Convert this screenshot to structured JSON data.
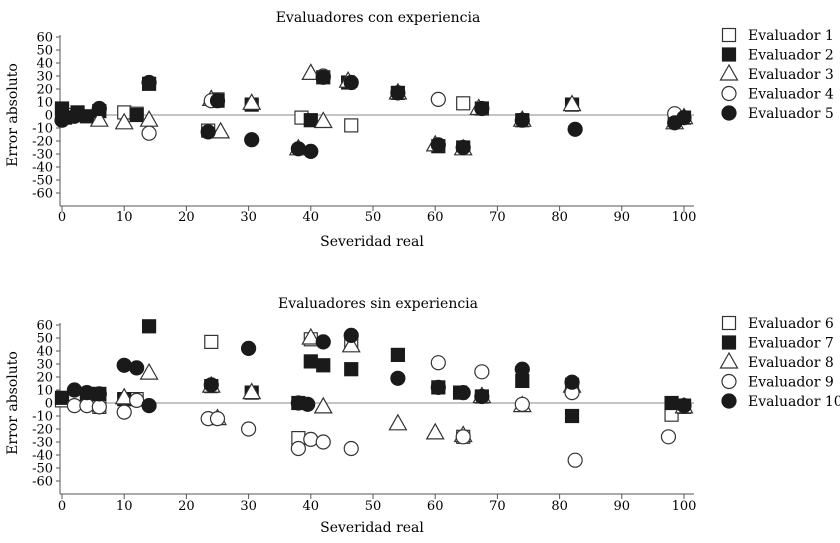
{
  "chart_data": [
    {
      "type": "scatter",
      "title": "Evaluadores con experiencia",
      "xlabel": "Severidad real",
      "ylabel": "Error absoluto",
      "xlim": [
        0,
        100
      ],
      "ylim": [
        -60,
        60
      ],
      "xticks": [
        0,
        10,
        20,
        30,
        40,
        50,
        60,
        70,
        80,
        90,
        100
      ],
      "yticks": [
        60,
        50,
        40,
        30,
        20,
        10,
        0,
        -10,
        -20,
        -30,
        -40,
        -50,
        -60
      ],
      "grid": false,
      "legend_position": "right",
      "series": [
        {
          "name": "Evaluador 1",
          "marker": "square-open",
          "points": [
            [
              0,
              3
            ],
            [
              2,
              0
            ],
            [
              10,
              2
            ],
            [
              12,
              1
            ],
            [
              23.5,
              -12
            ],
            [
              25,
              12
            ],
            [
              38.5,
              -2
            ],
            [
              46.5,
              -8
            ],
            [
              64.5,
              9
            ],
            [
              98.5,
              -2
            ]
          ]
        },
        {
          "name": "Evaluador 2",
          "marker": "square-filled",
          "points": [
            [
              0,
              5
            ],
            [
              0.5,
              -2
            ],
            [
              2.5,
              2
            ],
            [
              4,
              -1
            ],
            [
              6,
              3
            ],
            [
              12,
              0
            ],
            [
              14,
              24
            ],
            [
              25,
              11
            ],
            [
              30.5,
              8
            ],
            [
              40,
              -4
            ],
            [
              42,
              29
            ],
            [
              46,
              25
            ],
            [
              54,
              17
            ],
            [
              60.5,
              -24
            ],
            [
              64.5,
              -25
            ],
            [
              67.5,
              5
            ],
            [
              74,
              -4
            ],
            [
              82,
              8
            ],
            [
              100,
              -2
            ]
          ]
        },
        {
          "name": "Evaluador 3",
          "marker": "triangle-open",
          "points": [
            [
              6,
              -4
            ],
            [
              10,
              -6
            ],
            [
              14,
              -4
            ],
            [
              24,
              12
            ],
            [
              25.5,
              -13
            ],
            [
              30.5,
              9
            ],
            [
              38,
              -26
            ],
            [
              40,
              32
            ],
            [
              42,
              -5
            ],
            [
              46,
              26
            ],
            [
              54,
              17
            ],
            [
              60,
              -23
            ],
            [
              64.5,
              -26
            ],
            [
              67,
              5
            ],
            [
              74,
              -4
            ],
            [
              82,
              8
            ],
            [
              98.5,
              -6
            ],
            [
              100,
              -2
            ]
          ]
        },
        {
          "name": "Evaluador 4",
          "marker": "circle-open",
          "points": [
            [
              14,
              -14
            ],
            [
              24,
              11
            ],
            [
              42,
              30
            ],
            [
              60.5,
              12
            ],
            [
              98.5,
              1
            ]
          ]
        },
        {
          "name": "Evaluador 5",
          "marker": "circle-filled",
          "points": [
            [
              0,
              -4
            ],
            [
              2,
              -1
            ],
            [
              6,
              5
            ],
            [
              14,
              25
            ],
            [
              23.5,
              -13
            ],
            [
              25,
              11
            ],
            [
              30.5,
              -19
            ],
            [
              38,
              -26
            ],
            [
              40,
              -28
            ],
            [
              42,
              29
            ],
            [
              46.5,
              25
            ],
            [
              54,
              17
            ],
            [
              60.5,
              -23
            ],
            [
              64.5,
              -25
            ],
            [
              67.5,
              5
            ],
            [
              74,
              -4
            ],
            [
              82.5,
              -11
            ],
            [
              98.5,
              -6
            ],
            [
              100,
              -2
            ]
          ]
        }
      ]
    },
    {
      "type": "scatter",
      "title": "Evaluadores sin experiencia",
      "xlabel": "Severidad real",
      "ylabel": "Error absoluto",
      "xlim": [
        0,
        100
      ],
      "ylim": [
        -60,
        60
      ],
      "xticks": [
        0,
        10,
        20,
        30,
        40,
        50,
        60,
        70,
        80,
        90,
        100
      ],
      "yticks": [
        60,
        50,
        40,
        30,
        20,
        10,
        0,
        -10,
        -20,
        -30,
        -40,
        -50,
        -60
      ],
      "grid": false,
      "legend_position": "right",
      "series": [
        {
          "name": "Evaluador 6",
          "marker": "square-open",
          "points": [
            [
              0,
              2
            ],
            [
              6,
              -3
            ],
            [
              12,
              3
            ],
            [
              24,
              47
            ],
            [
              38,
              -27
            ],
            [
              40,
              49
            ],
            [
              46.5,
              46
            ],
            [
              64.5,
              -26
            ],
            [
              82,
              14
            ],
            [
              98,
              -9
            ],
            [
              100,
              -3
            ]
          ]
        },
        {
          "name": "Evaluador 7",
          "marker": "square-filled",
          "points": [
            [
              0,
              4
            ],
            [
              4,
              7
            ],
            [
              6,
              7
            ],
            [
              10,
              3
            ],
            [
              14,
              59
            ],
            [
              24,
              13
            ],
            [
              30.5,
              8
            ],
            [
              38,
              0
            ],
            [
              40,
              32
            ],
            [
              42,
              29
            ],
            [
              46.5,
              26
            ],
            [
              54,
              37
            ],
            [
              60.5,
              12
            ],
            [
              64,
              8
            ],
            [
              67.5,
              5
            ],
            [
              74,
              17
            ],
            [
              82,
              -10
            ],
            [
              98,
              0
            ],
            [
              100,
              -2
            ]
          ]
        },
        {
          "name": "Evaluador 8",
          "marker": "triangle-open",
          "points": [
            [
              10,
              4
            ],
            [
              14,
              23
            ],
            [
              24,
              13
            ],
            [
              25,
              -12
            ],
            [
              30.5,
              8
            ],
            [
              40,
              50
            ],
            [
              42,
              -3
            ],
            [
              46.5,
              44
            ],
            [
              54,
              -16
            ],
            [
              60,
              -23
            ],
            [
              64.5,
              -25
            ],
            [
              67.5,
              5
            ],
            [
              74,
              -2
            ],
            [
              82,
              13
            ],
            [
              100,
              -3
            ]
          ]
        },
        {
          "name": "Evaluador 9",
          "marker": "circle-open",
          "points": [
            [
              2,
              -2
            ],
            [
              4,
              -2
            ],
            [
              6,
              -3
            ],
            [
              10,
              -7
            ],
            [
              12,
              2
            ],
            [
              23.5,
              -12
            ],
            [
              25,
              -12
            ],
            [
              30,
              -20
            ],
            [
              38,
              -35
            ],
            [
              40,
              -28
            ],
            [
              42,
              -30
            ],
            [
              46.5,
              -35
            ],
            [
              60.5,
              31
            ],
            [
              64.5,
              -26
            ],
            [
              67.5,
              24
            ],
            [
              74,
              -1
            ],
            [
              82,
              8
            ],
            [
              82.5,
              -44
            ],
            [
              97.5,
              -26
            ]
          ]
        },
        {
          "name": "Evaluador 10",
          "marker": "circle-filled",
          "points": [
            [
              2,
              10
            ],
            [
              4,
              8
            ],
            [
              6,
              7
            ],
            [
              10,
              29
            ],
            [
              12,
              27
            ],
            [
              14,
              -2
            ],
            [
              24,
              14
            ],
            [
              30,
              42
            ],
            [
              38,
              0
            ],
            [
              39.5,
              -1
            ],
            [
              42,
              47
            ],
            [
              46.5,
              52
            ],
            [
              54,
              19
            ],
            [
              60.5,
              12
            ],
            [
              64.5,
              8
            ],
            [
              67.5,
              5
            ],
            [
              74,
              26
            ],
            [
              82,
              16
            ],
            [
              100,
              -2
            ]
          ]
        }
      ]
    }
  ]
}
